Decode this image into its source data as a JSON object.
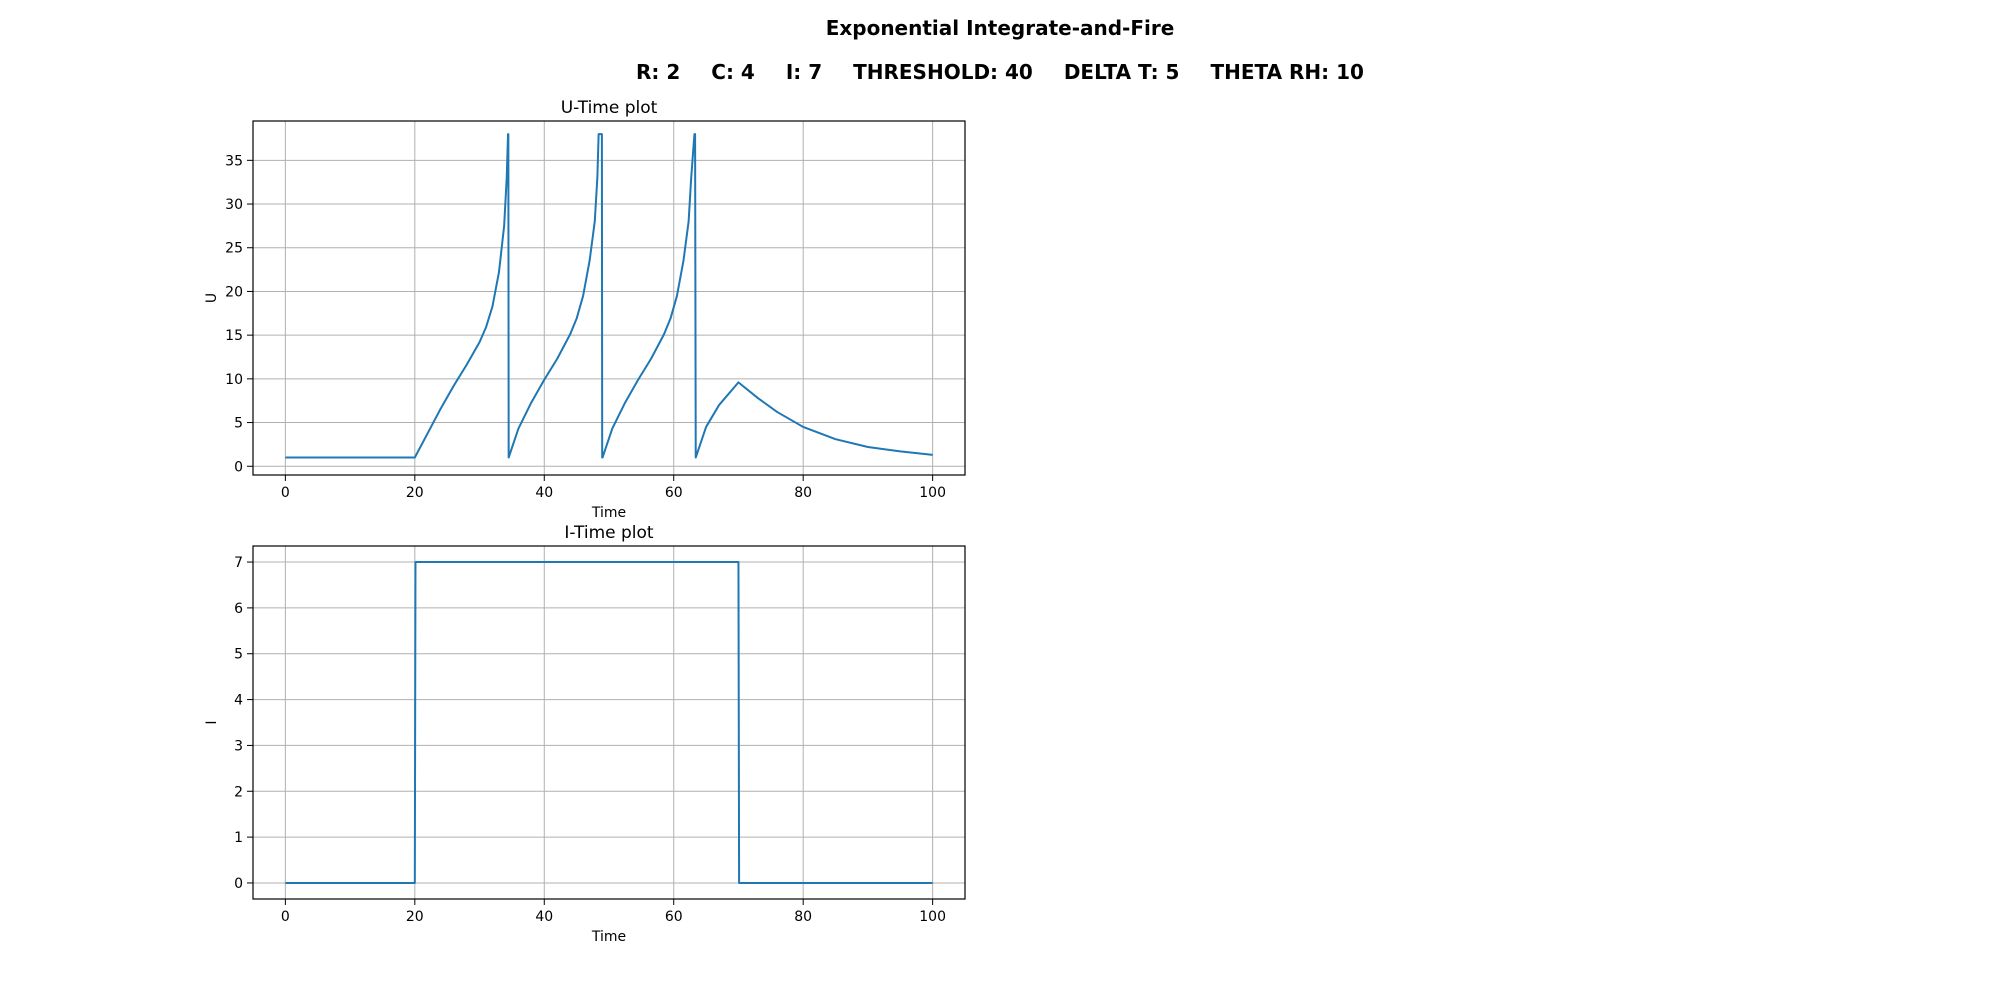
{
  "figure": {
    "suptitle": "Exponential Integrate-and-Fire",
    "params": [
      "R: 2",
      "C: 4",
      "I: 7",
      "THRESHOLD: 40",
      "DELTA T: 5",
      "THETA RH: 10"
    ]
  },
  "chart_data": [
    {
      "type": "line",
      "title": "U-Time plot",
      "xlabel": "Time",
      "ylabel": "U",
      "xlim": [
        -5,
        105
      ],
      "ylim": [
        -1,
        39.5
      ],
      "xticks": [
        0,
        20,
        40,
        60,
        80,
        100
      ],
      "yticks": [
        0,
        5,
        10,
        15,
        20,
        25,
        30,
        35
      ],
      "grid": true,
      "color": "#1f77b4",
      "series": [
        {
          "x": [
            0,
            20,
            22,
            24,
            26,
            28,
            30,
            31,
            32,
            33,
            33.8,
            34.2,
            34.4,
            34.45,
            34.5,
            36,
            38,
            40,
            42,
            44,
            45,
            46,
            47,
            47.8,
            48.2,
            48.4,
            48.9,
            48.95,
            49,
            50.5,
            52.5,
            54.5,
            56.5,
            58.5,
            59.5,
            60.5,
            61.5,
            62.3,
            62.7,
            63.2,
            63.3,
            63.4,
            65,
            67,
            70,
            73,
            76,
            80,
            85,
            90,
            95,
            100
          ],
          "y": [
            1,
            1,
            3.8,
            6.6,
            9.2,
            11.6,
            14.2,
            15.9,
            18.3,
            22.2,
            27.5,
            33,
            38,
            38,
            1,
            4.3,
            7.3,
            9.9,
            12.3,
            15.1,
            16.9,
            19.5,
            23.5,
            28,
            33,
            38,
            38,
            1,
            1,
            4.3,
            7.3,
            9.9,
            12.3,
            15.1,
            16.9,
            19.5,
            23.5,
            28,
            33,
            38,
            38,
            1,
            4.5,
            7,
            9.6,
            7.8,
            6.2,
            4.5,
            3.1,
            2.2,
            1.7,
            1.3
          ]
        }
      ]
    },
    {
      "type": "line",
      "title": "I-Time plot",
      "xlabel": "Time",
      "ylabel": "I",
      "xlim": [
        -5,
        105
      ],
      "ylim": [
        -0.35,
        7.35
      ],
      "xticks": [
        0,
        20,
        40,
        60,
        80,
        100
      ],
      "yticks": [
        0,
        1,
        2,
        3,
        4,
        5,
        6,
        7
      ],
      "grid": true,
      "color": "#1f77b4",
      "series": [
        {
          "x": [
            0,
            20,
            20.1,
            70,
            70.1,
            100
          ],
          "y": [
            0,
            0,
            7,
            7,
            0,
            0
          ]
        }
      ]
    }
  ]
}
